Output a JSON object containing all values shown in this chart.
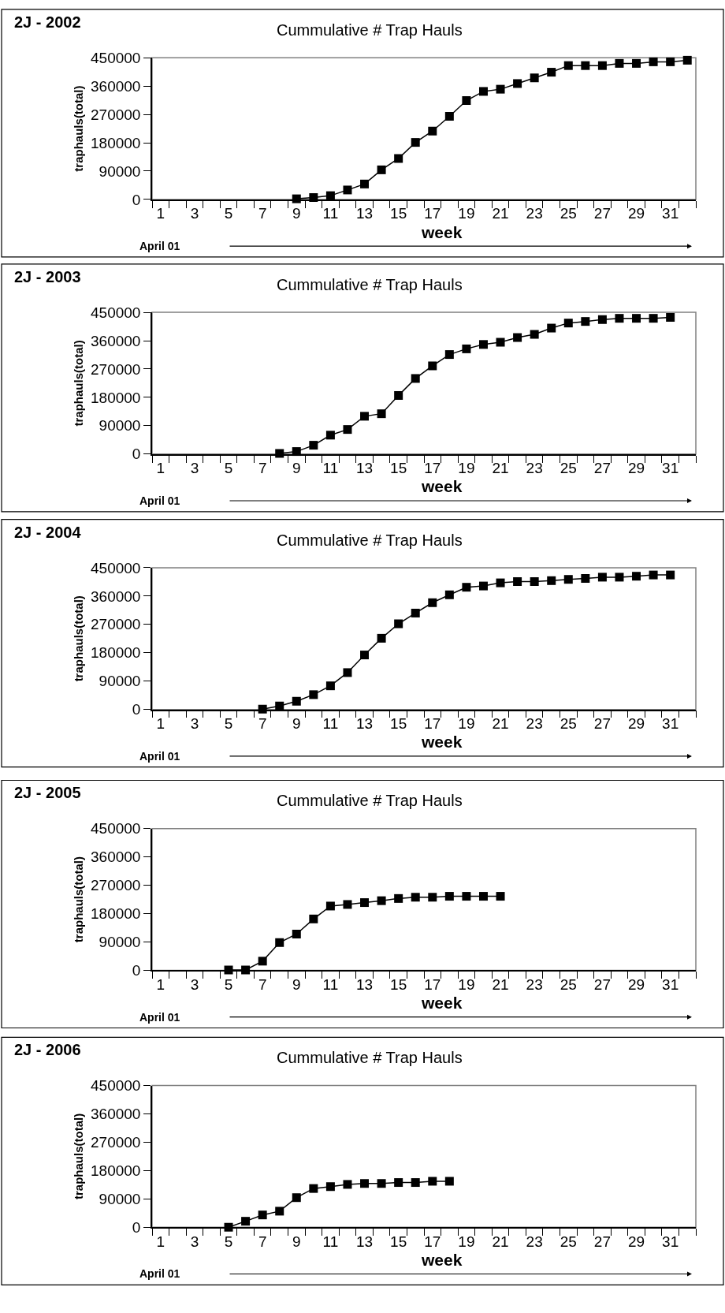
{
  "chart_data": [
    {
      "type": "line",
      "title": "2J - 2002",
      "subtitle": "Cummulative # Trap Hauls",
      "xlabel": "week",
      "ylabel": "traphauls(total)",
      "annotations": [
        "April 01"
      ],
      "xlim": [
        0.5,
        32.5
      ],
      "xticks": [
        1,
        3,
        5,
        7,
        9,
        11,
        13,
        15,
        17,
        19,
        21,
        23,
        25,
        27,
        29,
        31
      ],
      "ylim": [
        0,
        450000
      ],
      "yticks": [
        0,
        90000,
        180000,
        270000,
        360000,
        450000
      ],
      "marker": "square",
      "line_style": "solid",
      "grid": false,
      "series": [
        {
          "color": "#000000",
          "x": [
            9,
            10,
            11,
            12,
            13,
            14,
            15,
            16,
            17,
            18,
            19,
            20,
            21,
            22,
            23,
            24,
            25,
            26,
            27,
            28,
            29,
            30,
            31,
            32
          ],
          "values": [
            2000,
            6000,
            12000,
            30000,
            49000,
            94000,
            130000,
            181000,
            217000,
            264000,
            314000,
            343000,
            350000,
            368000,
            386000,
            404000,
            425000,
            425000,
            425000,
            432000,
            432000,
            437000,
            437000,
            442000
          ]
        }
      ]
    },
    {
      "type": "line",
      "title": "2J - 2003",
      "subtitle": "Cummulative # Trap Hauls",
      "xlabel": "week",
      "ylabel": "traphauls(total)",
      "annotations": [
        "April 01"
      ],
      "xlim": [
        0.5,
        32.5
      ],
      "xticks": [
        1,
        3,
        5,
        7,
        9,
        11,
        13,
        15,
        17,
        19,
        21,
        23,
        25,
        27,
        29,
        31
      ],
      "ylim": [
        0,
        450000
      ],
      "yticks": [
        0,
        90000,
        180000,
        270000,
        360000,
        450000
      ],
      "marker": "square",
      "line_style": "solid",
      "grid": false,
      "series": [
        {
          "color": "#000000",
          "x": [
            8,
            9,
            10,
            11,
            12,
            13,
            14,
            15,
            16,
            17,
            18,
            19,
            20,
            21,
            22,
            23,
            24,
            25,
            26,
            27,
            28,
            29,
            30,
            31
          ],
          "values": [
            2000,
            8000,
            28000,
            60000,
            78000,
            120000,
            128000,
            186000,
            240000,
            280000,
            316000,
            334000,
            348000,
            355000,
            370000,
            380000,
            400000,
            416000,
            421000,
            427000,
            431000,
            431000,
            431000,
            434000
          ]
        }
      ]
    },
    {
      "type": "line",
      "title": "2J - 2004",
      "subtitle": "Cummulative # Trap Hauls",
      "xlabel": "week",
      "ylabel": "traphauls(total)",
      "annotations": [
        "April 01"
      ],
      "xlim": [
        0.5,
        32.5
      ],
      "xticks": [
        1,
        3,
        5,
        7,
        9,
        11,
        13,
        15,
        17,
        19,
        21,
        23,
        25,
        27,
        29,
        31
      ],
      "ylim": [
        0,
        450000
      ],
      "yticks": [
        0,
        90000,
        180000,
        270000,
        360000,
        450000
      ],
      "marker": "square",
      "line_style": "solid",
      "grid": false,
      "series": [
        {
          "color": "#000000",
          "x": [
            7,
            8,
            9,
            10,
            11,
            12,
            13,
            14,
            15,
            16,
            17,
            18,
            19,
            20,
            21,
            22,
            23,
            24,
            25,
            26,
            27,
            28,
            29,
            30,
            31
          ],
          "values": [
            1000,
            11000,
            26000,
            47000,
            75000,
            117000,
            173000,
            226000,
            272000,
            306000,
            339000,
            364000,
            388000,
            392000,
            402000,
            406000,
            406000,
            409000,
            413000,
            416000,
            420000,
            420000,
            423000,
            427000,
            427000
          ]
        }
      ]
    },
    {
      "type": "line",
      "title": "2J - 2005",
      "subtitle": "Cummulative # Trap Hauls",
      "xlabel": "week",
      "ylabel": "traphauls(total)",
      "annotations": [
        "April 01"
      ],
      "xlim": [
        0.5,
        32.5
      ],
      "xticks": [
        1,
        3,
        5,
        7,
        9,
        11,
        13,
        15,
        17,
        19,
        21,
        23,
        25,
        27,
        29,
        31
      ],
      "ylim": [
        0,
        450000
      ],
      "yticks": [
        0,
        90000,
        180000,
        270000,
        360000,
        450000
      ],
      "marker": "square",
      "line_style": "solid",
      "grid": false,
      "series": [
        {
          "color": "#000000",
          "x": [
            5,
            6,
            7,
            8,
            9,
            10,
            11,
            12,
            13,
            14,
            15,
            16,
            17,
            18,
            19,
            20,
            21
          ],
          "values": [
            1000,
            1000,
            29000,
            88000,
            115000,
            163000,
            204000,
            209000,
            215000,
            221000,
            228000,
            232000,
            232000,
            235000,
            235000,
            235000,
            235000
          ]
        }
      ]
    },
    {
      "type": "line",
      "title": "2J - 2006",
      "subtitle": "Cummulative # Trap Hauls",
      "xlabel": "week",
      "ylabel": "traphauls(total)",
      "annotations": [
        "April 01"
      ],
      "xlim": [
        0.5,
        32.5
      ],
      "xticks": [
        1,
        3,
        5,
        7,
        9,
        11,
        13,
        15,
        17,
        19,
        21,
        23,
        25,
        27,
        29,
        31
      ],
      "ylim": [
        0,
        450000
      ],
      "yticks": [
        0,
        90000,
        180000,
        270000,
        360000,
        450000
      ],
      "marker": "square",
      "line_style": "solid",
      "grid": false,
      "series": [
        {
          "color": "#000000",
          "x": [
            5,
            6,
            7,
            8,
            9,
            10,
            11,
            12,
            13,
            14,
            15,
            16,
            17,
            18
          ],
          "values": [
            0,
            19000,
            39000,
            51000,
            94000,
            123000,
            129000,
            136000,
            139000,
            139000,
            142000,
            142000,
            146000,
            146000
          ]
        }
      ]
    }
  ]
}
